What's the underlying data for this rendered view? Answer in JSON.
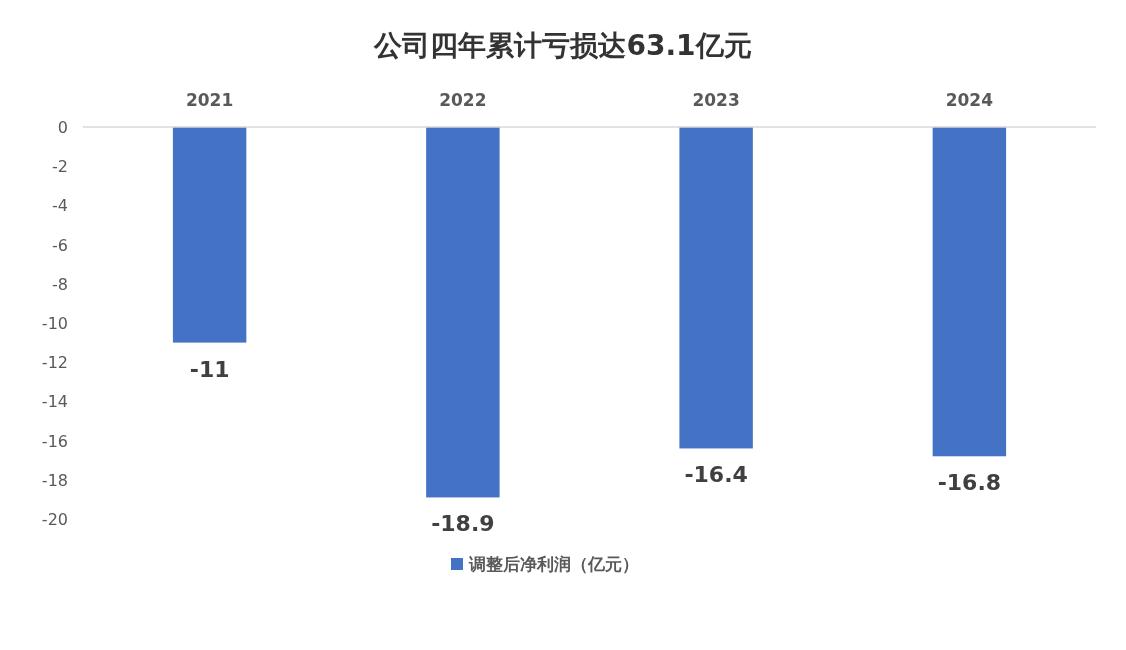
{
  "chart_data": {
    "type": "bar",
    "title": "公司四年累计亏损达63.1亿元",
    "categories": [
      "2021",
      "2022",
      "2023",
      "2024"
    ],
    "series": [
      {
        "name": "调整后净利润（亿元）",
        "color": "#4472c4",
        "values": [
          -11,
          -18.9,
          -16.4,
          -16.8
        ]
      }
    ],
    "ylim": [
      -20,
      0
    ],
    "yticks": [
      0,
      -2,
      -4,
      -6,
      -8,
      -10,
      -12,
      -14,
      -16,
      -18,
      -20
    ],
    "data_labels": true,
    "legend": "bottom",
    "grid": false
  }
}
